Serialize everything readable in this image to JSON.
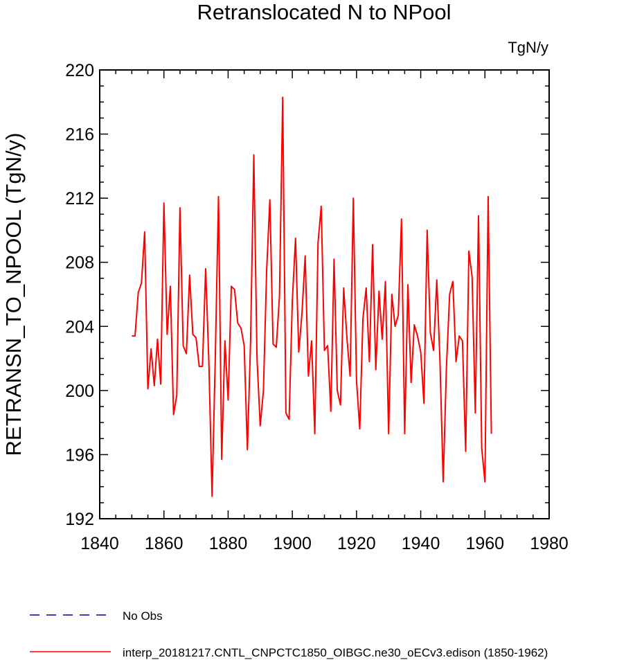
{
  "chart_data": {
    "type": "line",
    "title": "Retranslocated N to NPool",
    "units": "TgN/y",
    "xlabel": "",
    "ylabel": "RETRANSN_TO_NPOOL  (TgN/y)",
    "xlim": [
      1840,
      1980
    ],
    "ylim": [
      192,
      220
    ],
    "xticks": [
      1840,
      1860,
      1880,
      1900,
      1920,
      1940,
      1960,
      1980
    ],
    "yticks": [
      192,
      196,
      200,
      204,
      208,
      212,
      216,
      220
    ],
    "grid": false,
    "legend_placement": "bottom-left",
    "series": [
      {
        "name": "interp_20181217.CNTL_CNPCTC1850_OIBGC.ne30_oECv3.edison (1850-1962)",
        "color": "#ff0000",
        "style": "solid",
        "x_start": 1850,
        "values": [
          203.4,
          203.4,
          206.1,
          206.7,
          209.9,
          200.1,
          202.6,
          200.3,
          203.2,
          200.4,
          211.7,
          203.5,
          206.5,
          198.5,
          199.7,
          211.4,
          202.8,
          202.3,
          207.2,
          203.5,
          203.3,
          201.5,
          201.5,
          207.6,
          201.8,
          193.4,
          202.0,
          212.1,
          195.7,
          203.1,
          199.4,
          206.5,
          206.3,
          204.2,
          203.9,
          202.8,
          196.3,
          203.1,
          214.7,
          202.0,
          197.8,
          200.0,
          207.5,
          211.9,
          202.9,
          202.7,
          205.9,
          218.3,
          198.6,
          198.2,
          205.6,
          209.5,
          202.4,
          204.8,
          208.4,
          200.9,
          203.1,
          197.3,
          209.2,
          211.5,
          202.5,
          202.8,
          198.7,
          208.2,
          200.0,
          199.1,
          206.4,
          203.3,
          200.9,
          212.0,
          200.6,
          197.6,
          204.5,
          206.4,
          201.8,
          209.1,
          201.3,
          206.2,
          203.2,
          206.8,
          197.3,
          206.0,
          204.0,
          204.7,
          210.7,
          197.3,
          206.6,
          200.5,
          204.1,
          203.4,
          202.4,
          199.2,
          210.0,
          203.6,
          202.5,
          206.9,
          201.8,
          194.3,
          201.4,
          206.0,
          206.8,
          201.8,
          203.4,
          203.1,
          196.2,
          208.7,
          207.1,
          198.6,
          210.9,
          196.4,
          194.3,
          212.1,
          197.3
        ]
      },
      {
        "name": "No Obs",
        "color": "#0000aa",
        "style": "dashed",
        "values": []
      }
    ]
  }
}
